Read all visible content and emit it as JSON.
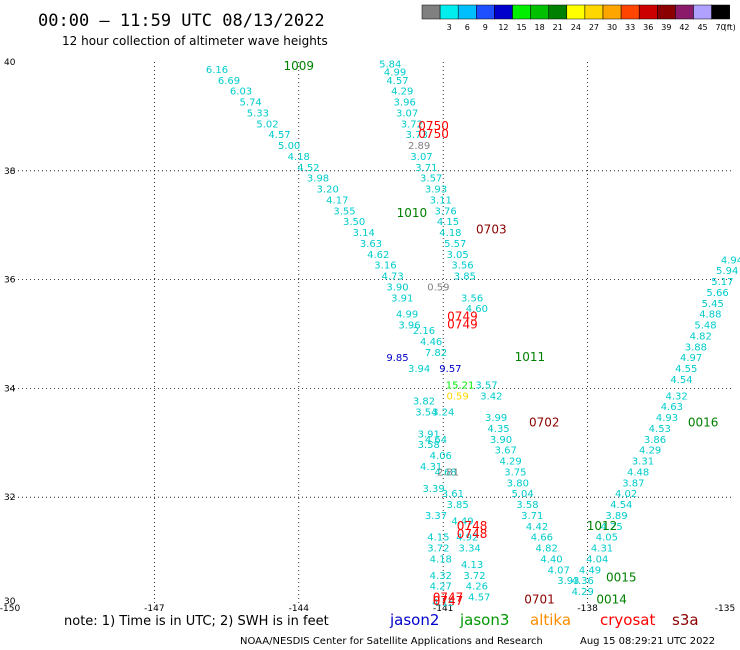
{
  "header": {
    "title": "00:00 – 11:59 UTC 08/13/2022",
    "subtitle": "12 hour collection of altimeter wave heights"
  },
  "color_scale": {
    "unit": "(ft)",
    "bins": [
      {
        "label": "",
        "color": "#808080"
      },
      {
        "label": "3",
        "color": "#00eeee"
      },
      {
        "label": "6",
        "color": "#00bfff"
      },
      {
        "label": "9",
        "color": "#1e50ff"
      },
      {
        "label": "12",
        "color": "#0000cd"
      },
      {
        "label": "15",
        "color": "#00ee00"
      },
      {
        "label": "18",
        "color": "#00c000"
      },
      {
        "label": "21",
        "color": "#008000"
      },
      {
        "label": "24",
        "color": "#ffff00"
      },
      {
        "label": "27",
        "color": "#ffd700"
      },
      {
        "label": "30",
        "color": "#ffa500"
      },
      {
        "label": "33",
        "color": "#ff4500"
      },
      {
        "label": "36",
        "color": "#cc0000"
      },
      {
        "label": "39",
        "color": "#8b0000"
      },
      {
        "label": "42",
        "color": "#8b1a6b"
      },
      {
        "label": "45",
        "color": "#b0a0ff"
      },
      {
        "label": "70",
        "color": "#000000"
      }
    ]
  },
  "note": "note:  1) Time is in UTC;  2) SWH is in feet",
  "satellites": [
    {
      "name": "jason2",
      "color": "#0000cc"
    },
    {
      "name": "jason3",
      "color": "#009900"
    },
    {
      "name": "altika",
      "color": "#ff8c00"
    },
    {
      "name": "cryosat",
      "color": "#ff0000"
    },
    {
      "name": "s3a",
      "color": "#8b0000"
    }
  ],
  "footer": {
    "credit": "NOAA/NESDIS Center for Satellite Applications and Research",
    "timestamp": "Aug 15 08:29:21 UTC 2022"
  },
  "chart_data": {
    "type": "scatter",
    "title": "00:00 – 11:59 UTC 08/13/2022",
    "subtitle": "12 hour collection of altimeter wave heights",
    "xlim": [
      -150,
      -135
    ],
    "ylim": [
      30,
      40
    ],
    "x_ticks": [
      -150,
      -147,
      -144,
      -141,
      -138,
      -135
    ],
    "x_tick_labels": [
      "-150",
      "-147",
      "-144",
      "-141",
      "-138",
      "-135"
    ],
    "y_ticks": [
      30,
      32,
      34,
      36,
      38,
      40
    ],
    "y_tick_labels": [
      "30",
      "32",
      "34",
      "36",
      "38",
      "40"
    ],
    "grid": true,
    "series": [
      {
        "name": "jason3",
        "color": "#00cccc",
        "points": [
          [
            -145.7,
            39.8,
            "6.16"
          ],
          [
            -145.45,
            39.6,
            "6.69"
          ],
          [
            -145.2,
            39.4,
            "6.03"
          ],
          [
            -145.0,
            39.2,
            "5.74"
          ],
          [
            -144.85,
            39.0,
            "5.33"
          ],
          [
            -144.65,
            38.8,
            "5.02"
          ],
          [
            -144.4,
            38.6,
            "4.57"
          ],
          [
            -144.2,
            38.4,
            "5.00"
          ],
          [
            -144.0,
            38.2,
            "4.18"
          ],
          [
            -143.8,
            38.0,
            "4.52"
          ],
          [
            -143.6,
            37.8,
            "3.98"
          ],
          [
            -143.4,
            37.6,
            "3.20"
          ],
          [
            -143.2,
            37.4,
            "4.17"
          ],
          [
            -143.05,
            37.2,
            "3.55"
          ],
          [
            -142.85,
            37.0,
            "3.50"
          ],
          [
            -142.65,
            36.8,
            "3.14"
          ],
          [
            -142.5,
            36.6,
            "3.63"
          ],
          [
            -142.35,
            36.4,
            "4.62"
          ],
          [
            -142.2,
            36.2,
            "3.16"
          ],
          [
            -142.05,
            36.0,
            "4.73"
          ],
          [
            -141.95,
            35.8,
            "3.90"
          ],
          [
            -141.85,
            35.6,
            "3.91"
          ],
          [
            -141.75,
            35.3,
            "4.99"
          ],
          [
            -141.7,
            35.1,
            "3.96"
          ],
          [
            -141.5,
            34.3,
            "3.94"
          ],
          [
            -141.4,
            33.7,
            "3.82"
          ],
          [
            -141.35,
            33.5,
            "3.54"
          ],
          [
            -141.3,
            33.1,
            "3.91"
          ],
          [
            -141.3,
            32.9,
            "3.58"
          ],
          [
            -141.25,
            32.5,
            "4.31"
          ],
          [
            -141.2,
            32.1,
            "3.39"
          ],
          [
            -141.15,
            31.6,
            "3.37"
          ],
          [
            -141.1,
            31.2,
            "4.15"
          ],
          [
            -141.1,
            31.0,
            "3.72"
          ],
          [
            -141.05,
            30.8,
            "4.18"
          ],
          [
            -141.05,
            30.5,
            "4.32"
          ],
          [
            -141.05,
            30.3,
            "4.27"
          ],
          [
            -141.0,
            30.0,
            "4.15"
          ]
        ]
      },
      {
        "name": "jason3",
        "color": "#00cccc",
        "points": [
          [
            -142.1,
            39.9,
            "5.84"
          ],
          [
            -142.0,
            39.75,
            "4.99"
          ],
          [
            -141.95,
            39.6,
            "4.57"
          ],
          [
            -141.85,
            39.4,
            "4.29"
          ],
          [
            -141.8,
            39.2,
            "3.96"
          ],
          [
            -141.75,
            39.0,
            "3.07"
          ],
          [
            -141.65,
            38.8,
            "3.72"
          ],
          [
            -141.55,
            38.6,
            "3.73"
          ],
          [
            -141.45,
            38.2,
            "3.07"
          ],
          [
            -141.35,
            38.0,
            "3.71"
          ],
          [
            -141.25,
            37.8,
            "3.57"
          ],
          [
            -141.15,
            37.6,
            "3.93"
          ],
          [
            -141.05,
            37.4,
            "3.11"
          ],
          [
            -140.95,
            37.2,
            "3.76"
          ],
          [
            -140.9,
            37.0,
            "4.15"
          ],
          [
            -140.85,
            36.8,
            "4.18"
          ],
          [
            -140.75,
            36.6,
            "5.57"
          ],
          [
            -140.7,
            36.4,
            "3.05"
          ],
          [
            -140.6,
            36.2,
            "3.56"
          ],
          [
            -140.55,
            36.0,
            "3.85"
          ],
          [
            -140.4,
            35.6,
            "3.56"
          ],
          [
            -140.3,
            35.4,
            "4.60"
          ],
          [
            -140.1,
            34.0,
            "3.57"
          ],
          [
            -140.0,
            33.8,
            "3.42"
          ],
          [
            -139.9,
            33.4,
            "3.99"
          ],
          [
            -139.85,
            33.2,
            "4.35"
          ],
          [
            -139.8,
            33.0,
            "3.90"
          ],
          [
            -139.7,
            32.8,
            "3.67"
          ],
          [
            -139.6,
            32.6,
            "4.29"
          ],
          [
            -139.5,
            32.4,
            "3.75"
          ],
          [
            -139.45,
            32.2,
            "3.80"
          ],
          [
            -139.35,
            32.0,
            "5.04"
          ],
          [
            -139.25,
            31.8,
            "3.58"
          ],
          [
            -139.15,
            31.6,
            "3.71"
          ],
          [
            -139.05,
            31.4,
            "4.42"
          ],
          [
            -138.95,
            31.2,
            "4.66"
          ],
          [
            -138.85,
            31.0,
            "4.82"
          ],
          [
            -138.75,
            30.8,
            "4.40"
          ],
          [
            -138.6,
            30.6,
            "4.07"
          ],
          [
            -138.4,
            30.4,
            "3.93"
          ],
          [
            -138.1,
            30.2,
            "4.29"
          ]
        ]
      },
      {
        "name": "jason3",
        "color": "#00cccc",
        "points": [
          [
            -141.15,
            33.0,
            "4.64"
          ],
          [
            -141.05,
            32.7,
            "4.06"
          ],
          [
            -140.95,
            32.4,
            "4.68"
          ],
          [
            -140.8,
            32.0,
            "3.61"
          ],
          [
            -140.7,
            31.8,
            "3.85"
          ],
          [
            -140.6,
            31.5,
            "4.49"
          ],
          [
            -140.5,
            31.2,
            "4.92"
          ],
          [
            -140.45,
            31.0,
            "3.34"
          ],
          [
            -140.4,
            30.7,
            "4.13"
          ],
          [
            -140.35,
            30.5,
            "3.72"
          ],
          [
            -140.3,
            30.3,
            "4.26"
          ],
          [
            -140.25,
            30.1,
            "4.57"
          ]
        ]
      },
      {
        "name": "jason3",
        "color": "#00cccc",
        "points": [
          [
            -138.1,
            30.4,
            "4.36"
          ],
          [
            -137.95,
            30.6,
            "4.49"
          ],
          [
            -137.8,
            30.8,
            "4.04"
          ],
          [
            -137.7,
            31.0,
            "4.31"
          ],
          [
            -137.6,
            31.2,
            "4.05"
          ],
          [
            -137.5,
            31.4,
            "4.25"
          ],
          [
            -137.4,
            31.6,
            "3.89"
          ],
          [
            -137.3,
            31.8,
            "4.54"
          ],
          [
            -137.2,
            32.0,
            "4.02"
          ],
          [
            -137.05,
            32.2,
            "3.87"
          ],
          [
            -136.95,
            32.4,
            "4.48"
          ],
          [
            -136.85,
            32.6,
            "3.31"
          ],
          [
            -136.7,
            32.8,
            "4.29"
          ],
          [
            -136.6,
            33.0,
            "3.86"
          ],
          [
            -136.5,
            33.2,
            "4.53"
          ],
          [
            -136.35,
            33.4,
            "4.93"
          ],
          [
            -136.25,
            33.6,
            "4.63"
          ],
          [
            -136.15,
            33.8,
            "4.32"
          ],
          [
            -136.05,
            34.1,
            "4.54"
          ],
          [
            -135.95,
            34.3,
            "4.55"
          ],
          [
            -135.85,
            34.5,
            "4.97"
          ],
          [
            -135.75,
            34.7,
            "3.88"
          ],
          [
            -135.65,
            34.9,
            "4.82"
          ],
          [
            -135.55,
            35.1,
            "5.48"
          ],
          [
            -135.45,
            35.3,
            "4.88"
          ],
          [
            -135.4,
            35.5,
            "5.45"
          ],
          [
            -135.3,
            35.7,
            "5.66"
          ],
          [
            -135.2,
            35.9,
            "5.17"
          ],
          [
            -135.1,
            36.1,
            "5.94"
          ],
          [
            -135.0,
            36.3,
            "4.94"
          ]
        ]
      },
      {
        "name": "jason3",
        "color": "#00cccc",
        "points": [
          [
            -141.4,
            35.0,
            "2.16"
          ],
          [
            -141.25,
            34.8,
            "4.46"
          ],
          [
            -141.15,
            34.6,
            "7.82"
          ],
          [
            -141.0,
            33.5,
            "3.24"
          ]
        ]
      },
      {
        "name": "cryosat",
        "color": "#808080",
        "points": [
          [
            -141.5,
            38.4,
            "2.89"
          ],
          [
            -141.1,
            35.8,
            "0.59"
          ],
          [
            -140.9,
            32.4,
            "2.81"
          ]
        ]
      },
      {
        "name": "jason2",
        "color": "#0000cc",
        "points": [
          [
            -141.95,
            34.5,
            "9.85"
          ],
          [
            -140.85,
            34.3,
            "9.57"
          ]
        ]
      },
      {
        "name": "jason3",
        "color": "#00ee00",
        "points": [
          [
            -140.65,
            34.0,
            "15.21"
          ]
        ]
      },
      {
        "name": "altika",
        "color": "#ffd700",
        "points": [
          [
            -140.7,
            33.8,
            "0.59"
          ]
        ]
      }
    ],
    "time_labels": [
      {
        "x": -144.0,
        "y": 39.85,
        "label": "1009",
        "color": "#008000"
      },
      {
        "x": -141.2,
        "y": 38.75,
        "label": "0750",
        "color": "#ff0000"
      },
      {
        "x": -141.2,
        "y": 38.6,
        "label": "0750",
        "color": "#ff0000"
      },
      {
        "x": -141.65,
        "y": 37.15,
        "label": "1010",
        "color": "#008000"
      },
      {
        "x": -140.0,
        "y": 36.85,
        "label": "0703",
        "color": "#8b0000"
      },
      {
        "x": -140.6,
        "y": 35.25,
        "label": "0749",
        "color": "#ff0000"
      },
      {
        "x": -140.6,
        "y": 35.1,
        "label": "0749",
        "color": "#ff0000"
      },
      {
        "x": -139.2,
        "y": 34.5,
        "label": "1011",
        "color": "#008000"
      },
      {
        "x": -138.9,
        "y": 33.3,
        "label": "0702",
        "color": "#8b0000"
      },
      {
        "x": -140.4,
        "y": 31.4,
        "label": "0748",
        "color": "#ff0000"
      },
      {
        "x": -140.4,
        "y": 31.25,
        "label": "0748",
        "color": "#ff0000"
      },
      {
        "x": -137.7,
        "y": 31.4,
        "label": "1012",
        "color": "#008000"
      },
      {
        "x": -137.3,
        "y": 30.45,
        "label": "0015",
        "color": "#008000"
      },
      {
        "x": -137.5,
        "y": 30.05,
        "label": "0014",
        "color": "#008000"
      },
      {
        "x": -139.0,
        "y": 30.05,
        "label": "0701",
        "color": "#8b0000"
      },
      {
        "x": -140.9,
        "y": 30.08,
        "label": "0747",
        "color": "#ff0000"
      },
      {
        "x": -140.9,
        "y": 30.02,
        "label": "0747",
        "color": "#ff0000"
      },
      {
        "x": -135.6,
        "y": 33.3,
        "label": "0016",
        "color": "#008000"
      }
    ]
  }
}
